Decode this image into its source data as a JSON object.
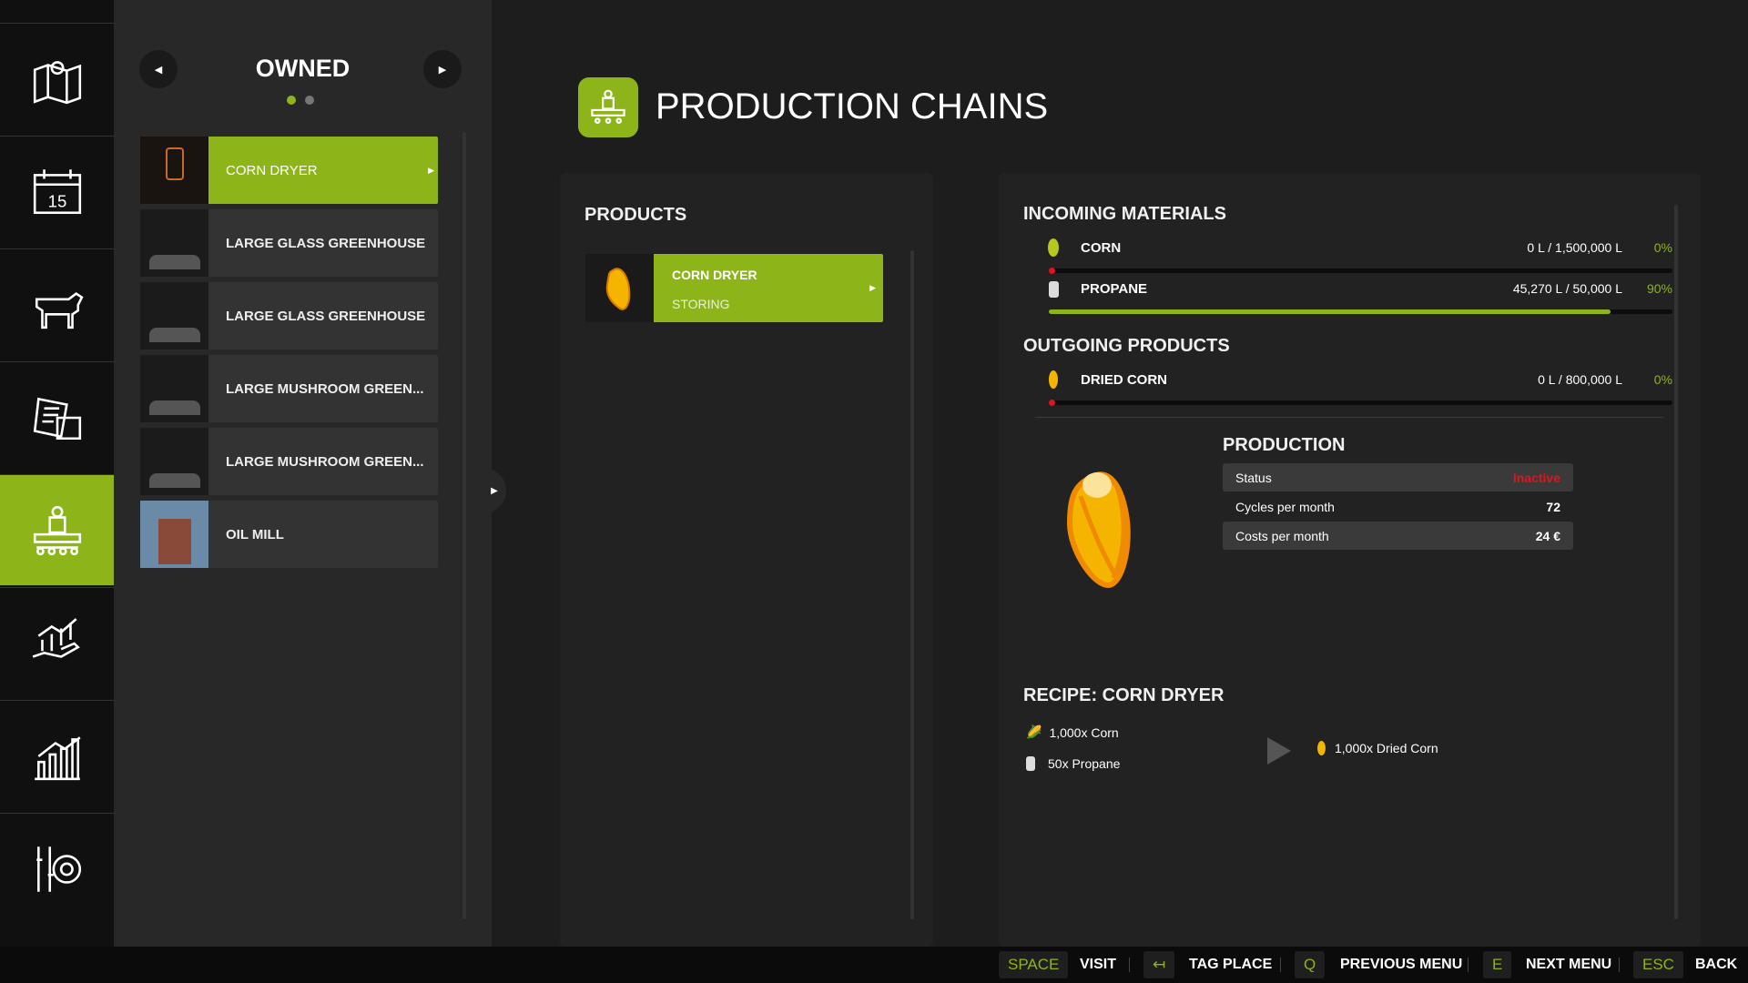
{
  "nav": {
    "items": [
      {
        "icon": "map-icon"
      },
      {
        "icon": "calendar-icon",
        "day": "15"
      },
      {
        "icon": "animals-icon"
      },
      {
        "icon": "contracts-icon"
      },
      {
        "icon": "production-icon",
        "active": true
      },
      {
        "icon": "finance-icon"
      },
      {
        "icon": "statistics-icon"
      },
      {
        "icon": "settings-icon"
      }
    ]
  },
  "owned": {
    "title": "OWNED",
    "page": 1,
    "pages": 2,
    "items": [
      {
        "label": "CORN DRYER",
        "thumb_text": "CORN DRYER",
        "selected": true
      },
      {
        "label": "LARGE GLASS GREENHOUSE"
      },
      {
        "label": "LARGE GLASS GREENHOUSE"
      },
      {
        "label": "LARGE MUSHROOM GREEN..."
      },
      {
        "label": "LARGE MUSHROOM GREEN..."
      },
      {
        "label": "OIL MILL"
      }
    ]
  },
  "header": {
    "title": "PRODUCTION CHAINS"
  },
  "products": {
    "title": "PRODUCTS",
    "items": [
      {
        "name": "CORN DRYER",
        "status": "STORING"
      }
    ]
  },
  "incoming": {
    "title": "INCOMING MATERIALS",
    "items": [
      {
        "name": "CORN",
        "amount": "0 L / 1,500,000 L",
        "percent": "0%",
        "fill": 0
      },
      {
        "name": "PROPANE",
        "amount": "45,270 L / 50,000 L",
        "percent": "90%",
        "fill": 90
      }
    ]
  },
  "outgoing": {
    "title": "OUTGOING PRODUCTS",
    "items": [
      {
        "name": "DRIED CORN",
        "amount": "0 L / 800,000 L",
        "percent": "0%",
        "fill": 0
      }
    ]
  },
  "production": {
    "title": "PRODUCTION",
    "rows": [
      {
        "label": "Status",
        "value": "Inactive"
      },
      {
        "label": "Cycles per month",
        "value": "72"
      },
      {
        "label": "Costs per month",
        "value": "24 €"
      }
    ]
  },
  "recipe": {
    "title": "RECIPE: CORN DRYER",
    "inputs": [
      "1,000x Corn",
      "50x Propane"
    ],
    "output": "1,000x Dried Corn"
  },
  "footer": {
    "keys": [
      {
        "key": "SPACE",
        "label": "VISIT"
      },
      {
        "key": "↤",
        "label": "TAG PLACE"
      },
      {
        "key": "Q",
        "label": "PREVIOUS MENU"
      },
      {
        "key": "E",
        "label": "NEXT MENU"
      },
      {
        "key": "ESC",
        "label": "BACK"
      }
    ]
  },
  "colors": {
    "accent": "#8db51a",
    "inactive": "#e0141e"
  }
}
